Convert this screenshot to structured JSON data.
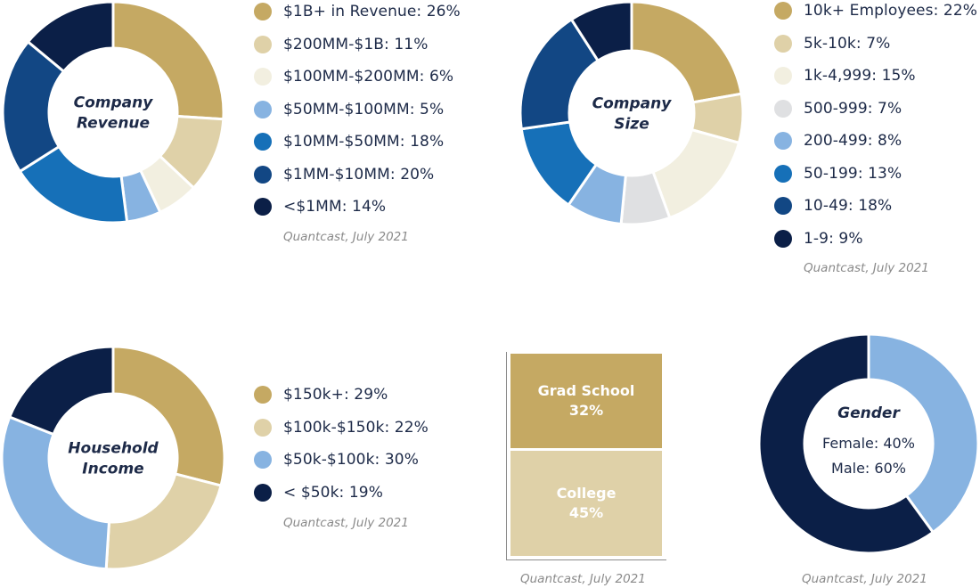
{
  "source_note": "Quantcast, July 2021",
  "chart_data": [
    {
      "id": "company_revenue",
      "type": "pie",
      "variant": "donut",
      "center_label": [
        "Company",
        "Revenue"
      ],
      "slices": [
        {
          "label": "$1B+ in Revenue: 26%",
          "value": 26,
          "color": "#c5a963"
        },
        {
          "label": "$200MM-$1B: 11%",
          "value": 11,
          "color": "#dfd1a8"
        },
        {
          "label": "$100MM-$200MM: 6%",
          "value": 6,
          "color": "#f2efe0"
        },
        {
          "label": "$50MM-$100MM: 5%",
          "value": 5,
          "color": "#87b3e1"
        },
        {
          "label": "$10MM-$50MM: 18%",
          "value": 18,
          "color": "#1670b8"
        },
        {
          "label": "$1MM-$10MM: 20%",
          "value": 20,
          "color": "#124784"
        },
        {
          "label": "<$1MM: 14%",
          "value": 14,
          "color": "#0b1f47"
        }
      ]
    },
    {
      "id": "company_size",
      "type": "pie",
      "variant": "donut",
      "center_label": [
        "Company",
        "Size"
      ],
      "slices": [
        {
          "label": "10k+ Employees: 22%",
          "value": 22,
          "color": "#c5a963"
        },
        {
          "label": "5k-10k: 7%",
          "value": 7,
          "color": "#dfd1a8"
        },
        {
          "label": "1k-4,999: 15%",
          "value": 15,
          "color": "#f2efe0"
        },
        {
          "label": "500-999: 7%",
          "value": 7,
          "color": "#dfe0e2"
        },
        {
          "label": "200-499: 8%",
          "value": 8,
          "color": "#87b3e1"
        },
        {
          "label": "50-199: 13%",
          "value": 13,
          "color": "#1670b8"
        },
        {
          "label": "10-49: 18%",
          "value": 18,
          "color": "#124784"
        },
        {
          "label": "1-9: 9%",
          "value": 9,
          "color": "#0b1f47"
        }
      ]
    },
    {
      "id": "household_income",
      "type": "pie",
      "variant": "donut",
      "center_label": [
        "Household",
        "Income"
      ],
      "slices": [
        {
          "label": "$150k+: 29%",
          "value": 29,
          "color": "#c5a963"
        },
        {
          "label": "$100k-$150k: 22%",
          "value": 22,
          "color": "#dfd1a8"
        },
        {
          "label": "$50k-$100k: 30%",
          "value": 30,
          "color": "#87b3e1"
        },
        {
          "label": "< $50k: 19%",
          "value": 19,
          "color": "#0b1f47"
        }
      ]
    },
    {
      "id": "education",
      "type": "bar",
      "variant": "stacked",
      "series": [
        {
          "name": "College",
          "value": 45,
          "label": "45%",
          "color": "#dfd1a8"
        },
        {
          "name": "Grad School",
          "value": 32,
          "label": "32%",
          "color": "#c5a963"
        }
      ]
    },
    {
      "id": "gender",
      "type": "pie",
      "variant": "donut",
      "center_label": [
        "Gender"
      ],
      "center_lines": [
        "Female: 40%",
        "Male: 60%"
      ],
      "slices": [
        {
          "label": "Female",
          "value": 40,
          "color": "#87b3e1"
        },
        {
          "label": "Male",
          "value": 60,
          "color": "#0b1f47"
        }
      ]
    }
  ]
}
